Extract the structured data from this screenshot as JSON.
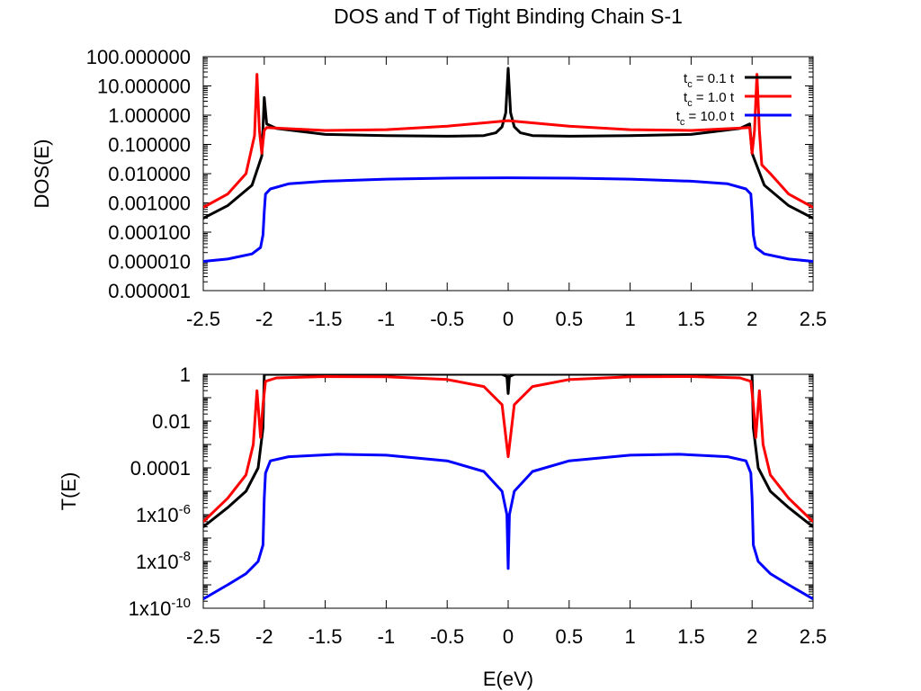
{
  "title": "DOS and T of Tight Binding Chain S-1",
  "xlabel": "E(eV)",
  "colors": {
    "black": "#000000",
    "red": "#ff0000",
    "blue": "#0000ff"
  },
  "legend": {
    "position": "top-right",
    "entries": [
      {
        "sub": "c",
        "rest": " = 0.1  t",
        "color": "#000000"
      },
      {
        "sub": "c",
        "rest": " = 1.0  t",
        "color": "#ff0000"
      },
      {
        "sub": "c",
        "rest": " = 10.0 t",
        "color": "#0000ff"
      }
    ]
  },
  "chart_data": [
    {
      "type": "line",
      "ylabel": "DOS(E)",
      "yscale": "log",
      "xlim": [
        -2.5,
        2.5
      ],
      "ylim": [
        1e-06,
        100
      ],
      "x_ticks": [
        "-2.5",
        "-2",
        "-1.5",
        "-1",
        "-0.5",
        "0",
        "0.5",
        "1",
        "1.5",
        "2",
        "2.5"
      ],
      "y_ticks": [
        "100.000000",
        "10.000000",
        "1.000000",
        "0.100000",
        "0.010000",
        "0.001000",
        "0.000100",
        "0.000010",
        "0.000001"
      ],
      "series": [
        {
          "name": "t_c = 0.1 t",
          "color": "#000000",
          "x": [
            -2.5,
            -2.3,
            -2.1,
            -2.02,
            -2.0,
            -1.98,
            -1.9,
            -1.5,
            -1.0,
            -0.5,
            -0.2,
            -0.1,
            -0.05,
            -0.02,
            0,
            0.02,
            0.05,
            0.1,
            0.2,
            0.5,
            1.0,
            1.5,
            1.9,
            1.98,
            2.0,
            2.02,
            2.1,
            2.3,
            2.5
          ],
          "y": [
            0.0003,
            0.0008,
            0.004,
            0.04,
            4.0,
            0.5,
            0.35,
            0.22,
            0.2,
            0.19,
            0.2,
            0.25,
            0.4,
            1.2,
            40,
            1.2,
            0.4,
            0.25,
            0.2,
            0.19,
            0.2,
            0.22,
            0.35,
            0.5,
            0.05,
            0.03,
            0.004,
            0.0008,
            0.0003
          ]
        },
        {
          "name": "t_c = 1.0 t",
          "color": "#ff0000",
          "x": [
            -2.5,
            -2.3,
            -2.15,
            -2.08,
            -2.06,
            -2.04,
            -2.02,
            -2.0,
            -1.98,
            -1.9,
            -1.5,
            -1.0,
            -0.5,
            0,
            0.5,
            1.0,
            1.5,
            1.9,
            1.98,
            2.0,
            2.02,
            2.04,
            2.06,
            2.08,
            2.15,
            2.3,
            2.5
          ],
          "y": [
            0.0007,
            0.002,
            0.01,
            0.2,
            25,
            0.3,
            0.05,
            0.3,
            0.38,
            0.36,
            0.3,
            0.32,
            0.42,
            0.65,
            0.42,
            0.32,
            0.3,
            0.36,
            0.38,
            0.05,
            0.3,
            25,
            0.3,
            0.02,
            0.01,
            0.002,
            0.0007
          ]
        },
        {
          "name": "t_c = 10.0 t",
          "color": "#0000ff",
          "x": [
            -2.5,
            -2.3,
            -2.1,
            -2.03,
            -2.01,
            -2.0,
            -1.99,
            -1.95,
            -1.8,
            -1.5,
            -1.0,
            -0.5,
            0,
            0.5,
            1.0,
            1.5,
            1.8,
            1.95,
            1.99,
            2.0,
            2.01,
            2.03,
            2.1,
            2.3,
            2.5
          ],
          "y": [
            1e-05,
            1.2e-05,
            1.8e-05,
            3e-05,
            8e-05,
            0.0005,
            0.002,
            0.003,
            0.0045,
            0.0055,
            0.0065,
            0.007,
            0.0072,
            0.007,
            0.0065,
            0.0055,
            0.0045,
            0.003,
            0.002,
            0.0005,
            8e-05,
            3e-05,
            1.8e-05,
            1.2e-05,
            1e-05
          ]
        }
      ]
    },
    {
      "type": "line",
      "ylabel": "T(E)",
      "yscale": "log",
      "xlim": [
        -2.5,
        2.5
      ],
      "ylim": [
        1e-10,
        1
      ],
      "x_ticks": [
        "-2.5",
        "-2",
        "-1.5",
        "-1",
        "-0.5",
        "0",
        "0.5",
        "1",
        "1.5",
        "2",
        "2.5"
      ],
      "y_ticks": [
        {
          "text": "1"
        },
        {
          "text": "0.01"
        },
        {
          "text": "0.0001"
        },
        {
          "text": "1x10",
          "sup": "-6"
        },
        {
          "text": "1x10",
          "sup": "-8"
        },
        {
          "text": "1x10",
          "sup": "-10"
        }
      ],
      "series": [
        {
          "name": "t_c = 0.1 t",
          "color": "#000000",
          "x": [
            -2.5,
            -2.3,
            -2.15,
            -2.05,
            -2.01,
            -2.0,
            -1.99,
            -1.5,
            -1.0,
            -0.5,
            -0.05,
            -0.01,
            0,
            0.01,
            0.05,
            0.5,
            1.0,
            1.5,
            1.99,
            2.0,
            2.01,
            2.05,
            2.15,
            2.3,
            2.5
          ],
          "y": [
            3e-07,
            2e-06,
            1e-05,
            0.0001,
            0.005,
            0.9,
            1,
            1,
            1,
            1,
            1,
            0.8,
            0.15,
            0.8,
            1,
            1,
            1,
            1,
            1,
            0.9,
            0.005,
            0.0001,
            1e-05,
            2e-06,
            3e-07
          ]
        },
        {
          "name": "t_c = 1.0 t",
          "color": "#ff0000",
          "x": [
            -2.5,
            -2.3,
            -2.15,
            -2.09,
            -2.06,
            -2.03,
            -2.01,
            -1.99,
            -1.9,
            -1.5,
            -1.0,
            -0.5,
            -0.2,
            -0.05,
            0,
            0.05,
            0.2,
            0.5,
            1.0,
            1.5,
            1.9,
            1.99,
            2.01,
            2.03,
            2.06,
            2.09,
            2.15,
            2.3,
            2.5
          ],
          "y": [
            5e-07,
            5e-06,
            5e-05,
            0.001,
            0.2,
            0.002,
            0.05,
            0.5,
            0.7,
            0.8,
            0.78,
            0.6,
            0.3,
            0.05,
            0.0003,
            0.05,
            0.3,
            0.6,
            0.78,
            0.8,
            0.7,
            0.5,
            0.05,
            0.002,
            0.2,
            0.001,
            5e-05,
            5e-06,
            5e-07
          ]
        },
        {
          "name": "t_c = 10.0 t",
          "color": "#0000ff",
          "x": [
            -2.5,
            -2.3,
            -2.15,
            -2.05,
            -2.01,
            -2.0,
            -1.99,
            -1.95,
            -1.8,
            -1.4,
            -1.0,
            -0.5,
            -0.2,
            -0.05,
            -0.01,
            0,
            0.01,
            0.05,
            0.2,
            0.5,
            1.0,
            1.4,
            1.8,
            1.95,
            1.99,
            2.0,
            2.01,
            2.05,
            2.15,
            2.3,
            2.5
          ],
          "y": [
            2.5e-10,
            1e-09,
            3e-09,
            1e-08,
            5e-08,
            5e-06,
            6e-05,
            0.0002,
            0.0003,
            0.00038,
            0.00035,
            0.0002,
            7e-05,
            1e-05,
            1e-06,
            5e-09,
            1e-06,
            1e-05,
            7e-05,
            0.0002,
            0.00035,
            0.00038,
            0.0003,
            0.0002,
            6e-05,
            5e-06,
            5e-08,
            1e-08,
            3e-09,
            1e-09,
            2.5e-10
          ]
        }
      ]
    }
  ]
}
